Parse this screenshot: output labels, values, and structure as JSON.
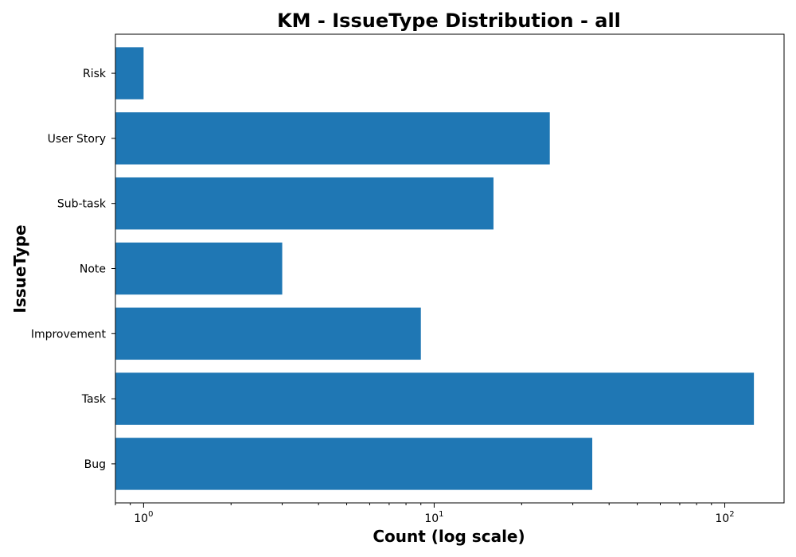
{
  "chart_data": {
    "type": "bar",
    "orientation": "horizontal",
    "title": "KM - IssueType Distribution - all",
    "xlabel": "Count (log scale)",
    "ylabel": "IssueType",
    "x_scale": "log",
    "xlim": [
      0.8,
      160
    ],
    "categories": [
      "Bug",
      "Task",
      "Improvement",
      "Note",
      "Sub-task",
      "User Story",
      "Risk"
    ],
    "values": [
      35,
      126,
      9,
      3,
      16,
      25,
      1
    ],
    "x_ticks": [
      {
        "value": 1,
        "base": "10",
        "exp": "0"
      },
      {
        "value": 10,
        "base": "10",
        "exp": "1"
      },
      {
        "value": 100,
        "base": "10",
        "exp": "2"
      }
    ],
    "bar_color": "#1f77b4",
    "grid": false,
    "legend": "none"
  }
}
